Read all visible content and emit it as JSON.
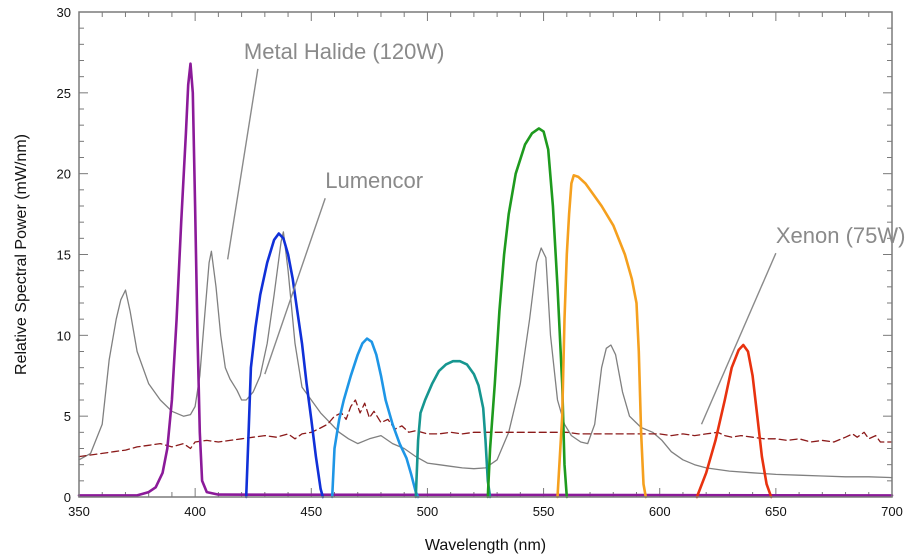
{
  "chart_data": {
    "type": "line",
    "xlabel": "Wavelength (nm)",
    "ylabel": "Relative Spectral Power (mW/nm)",
    "xlim": [
      350,
      700
    ],
    "ylim": [
      0,
      30
    ],
    "x_ticks": [
      "350",
      "400",
      "450",
      "500",
      "550",
      "600",
      "650",
      "700"
    ],
    "y_ticks": [
      "0",
      "5",
      "10",
      "15",
      "20",
      "25",
      "30"
    ],
    "grid": false,
    "annotations": [
      {
        "text": "Metal Halide (120W)",
        "from": [
          421,
          27.1
        ],
        "to": [
          414,
          14.7
        ]
      },
      {
        "text": "Lumencor",
        "from": [
          456,
          19.1
        ],
        "to": [
          430,
          7.6
        ]
      },
      {
        "text": "Xenon (75W)",
        "from": [
          650,
          15.7
        ],
        "to": [
          618,
          4.5
        ]
      }
    ],
    "series": [
      {
        "style": "thin-gray",
        "color": "#808080",
        "points": [
          [
            350,
            2.3
          ],
          [
            355,
            2.7
          ],
          [
            360,
            4.5
          ],
          [
            363,
            8.5
          ],
          [
            366,
            11.0
          ],
          [
            368,
            12.2
          ],
          [
            370,
            12.8
          ],
          [
            372,
            11.5
          ],
          [
            375,
            9.0
          ],
          [
            380,
            7.0
          ],
          [
            385,
            6.0
          ],
          [
            390,
            5.3
          ],
          [
            395,
            5.0
          ],
          [
            398,
            5.1
          ],
          [
            400,
            5.6
          ],
          [
            402,
            7.5
          ],
          [
            404,
            11.0
          ],
          [
            406,
            14.5
          ],
          [
            407,
            15.2
          ],
          [
            409,
            13.0
          ],
          [
            411,
            10.0
          ],
          [
            413,
            8.0
          ],
          [
            415,
            7.3
          ],
          [
            418,
            6.6
          ],
          [
            420,
            6.0
          ],
          [
            422,
            6.0
          ],
          [
            425,
            6.5
          ],
          [
            428,
            7.5
          ],
          [
            431,
            9.5
          ],
          [
            434,
            12.5
          ],
          [
            437,
            15.8
          ],
          [
            438,
            16.4
          ],
          [
            440,
            14.0
          ],
          [
            443,
            9.5
          ],
          [
            446,
            6.8
          ],
          [
            450,
            6.0
          ],
          [
            454,
            5.2
          ],
          [
            458,
            4.6
          ],
          [
            462,
            4.0
          ],
          [
            466,
            3.6
          ],
          [
            470,
            3.3
          ],
          [
            475,
            3.6
          ],
          [
            480,
            3.8
          ],
          [
            485,
            3.3
          ],
          [
            490,
            3.0
          ],
          [
            495,
            2.5
          ],
          [
            500,
            2.1
          ],
          [
            505,
            2.0
          ],
          [
            510,
            1.9
          ],
          [
            515,
            1.8
          ],
          [
            520,
            1.75
          ],
          [
            525,
            1.8
          ],
          [
            530,
            2.3
          ],
          [
            535,
            4.0
          ],
          [
            540,
            7.0
          ],
          [
            544,
            11.0
          ],
          [
            547,
            14.5
          ],
          [
            549,
            15.4
          ],
          [
            551,
            14.8
          ],
          [
            553,
            10.0
          ],
          [
            556,
            6.0
          ],
          [
            559,
            4.5
          ],
          [
            562,
            3.8
          ],
          [
            566,
            3.4
          ],
          [
            569,
            3.3
          ],
          [
            572,
            4.5
          ],
          [
            575,
            8.0
          ],
          [
            577,
            9.2
          ],
          [
            579,
            9.4
          ],
          [
            581,
            8.8
          ],
          [
            584,
            6.5
          ],
          [
            587,
            5.0
          ],
          [
            592,
            4.3
          ],
          [
            597,
            4.0
          ],
          [
            601,
            3.5
          ],
          [
            605,
            2.8
          ],
          [
            610,
            2.3
          ],
          [
            615,
            2.0
          ],
          [
            620,
            1.8
          ],
          [
            630,
            1.6
          ],
          [
            640,
            1.5
          ],
          [
            650,
            1.4
          ],
          [
            660,
            1.35
          ],
          [
            670,
            1.3
          ],
          [
            680,
            1.25
          ],
          [
            690,
            1.25
          ],
          [
            700,
            1.2
          ]
        ]
      },
      {
        "style": "dashed",
        "color": "#8b1a1a",
        "points": [
          [
            350,
            2.5
          ],
          [
            355,
            2.6
          ],
          [
            360,
            2.7
          ],
          [
            365,
            2.8
          ],
          [
            370,
            2.9
          ],
          [
            375,
            3.1
          ],
          [
            380,
            3.2
          ],
          [
            385,
            3.3
          ],
          [
            390,
            3.1
          ],
          [
            395,
            3.3
          ],
          [
            398,
            3.0
          ],
          [
            400,
            3.4
          ],
          [
            405,
            3.5
          ],
          [
            410,
            3.4
          ],
          [
            415,
            3.5
          ],
          [
            420,
            3.6
          ],
          [
            425,
            3.7
          ],
          [
            430,
            3.8
          ],
          [
            435,
            3.7
          ],
          [
            440,
            3.9
          ],
          [
            443,
            3.6
          ],
          [
            446,
            3.9
          ],
          [
            450,
            4.0
          ],
          [
            453,
            4.2
          ],
          [
            457,
            4.5
          ],
          [
            460,
            5.0
          ],
          [
            463,
            5.2
          ],
          [
            465,
            4.8
          ],
          [
            467,
            5.6
          ],
          [
            469,
            6.0
          ],
          [
            471,
            5.2
          ],
          [
            473,
            5.8
          ],
          [
            475,
            4.9
          ],
          [
            477,
            5.3
          ],
          [
            480,
            4.6
          ],
          [
            483,
            4.8
          ],
          [
            486,
            4.2
          ],
          [
            489,
            4.4
          ],
          [
            492,
            4.0
          ],
          [
            495,
            4.1
          ],
          [
            500,
            3.9
          ],
          [
            505,
            3.9
          ],
          [
            510,
            4.0
          ],
          [
            515,
            3.9
          ],
          [
            520,
            4.0
          ],
          [
            525,
            4.0
          ],
          [
            530,
            4.0
          ],
          [
            535,
            4.0
          ],
          [
            540,
            4.0
          ],
          [
            545,
            4.0
          ],
          [
            550,
            4.0
          ],
          [
            555,
            4.0
          ],
          [
            560,
            4.0
          ],
          [
            565,
            3.9
          ],
          [
            570,
            3.9
          ],
          [
            575,
            3.9
          ],
          [
            580,
            3.9
          ],
          [
            585,
            3.9
          ],
          [
            590,
            3.9
          ],
          [
            595,
            3.9
          ],
          [
            600,
            3.9
          ],
          [
            605,
            3.8
          ],
          [
            610,
            3.9
          ],
          [
            615,
            3.8
          ],
          [
            620,
            3.9
          ],
          [
            625,
            4.0
          ],
          [
            628,
            3.8
          ],
          [
            631,
            3.7
          ],
          [
            635,
            3.8
          ],
          [
            640,
            3.7
          ],
          [
            645,
            3.6
          ],
          [
            650,
            3.6
          ],
          [
            655,
            3.5
          ],
          [
            660,
            3.6
          ],
          [
            665,
            3.4
          ],
          [
            670,
            3.5
          ],
          [
            675,
            3.4
          ],
          [
            680,
            3.7
          ],
          [
            683,
            3.9
          ],
          [
            685,
            3.7
          ],
          [
            688,
            4.0
          ],
          [
            690,
            3.6
          ],
          [
            693,
            3.8
          ],
          [
            695,
            3.4
          ],
          [
            700,
            3.4
          ]
        ]
      },
      {
        "style": "thick",
        "color": "#8b1a99",
        "points": [
          [
            350,
            0.1
          ],
          [
            375,
            0.1
          ],
          [
            380,
            0.3
          ],
          [
            383,
            0.6
          ],
          [
            386,
            1.5
          ],
          [
            388,
            3.0
          ],
          [
            390,
            6.0
          ],
          [
            392,
            11.0
          ],
          [
            394,
            17.0
          ],
          [
            396,
            22.5
          ],
          [
            397,
            25.5
          ],
          [
            398,
            26.8
          ],
          [
            399,
            25.0
          ],
          [
            400,
            18.0
          ],
          [
            401,
            10.0
          ],
          [
            402,
            4.0
          ],
          [
            403,
            1.0
          ],
          [
            405,
            0.3
          ],
          [
            410,
            0.15
          ],
          [
            700,
            0.1
          ]
        ]
      },
      {
        "style": "thick",
        "color": "#1030d8",
        "points": [
          [
            422,
            0.0
          ],
          [
            423,
            4.0
          ],
          [
            424,
            8.0
          ],
          [
            426,
            10.5
          ],
          [
            428,
            12.5
          ],
          [
            431,
            14.5
          ],
          [
            434,
            15.9
          ],
          [
            436,
            16.3
          ],
          [
            438,
            16.0
          ],
          [
            440,
            15.0
          ],
          [
            442,
            13.5
          ],
          [
            444,
            11.5
          ],
          [
            446,
            9.5
          ],
          [
            448,
            7.0
          ],
          [
            450,
            4.8
          ],
          [
            452,
            2.5
          ],
          [
            454,
            0.5
          ],
          [
            455,
            0.0
          ]
        ]
      },
      {
        "style": "thick",
        "color": "#1e96e6",
        "points": [
          [
            459,
            0.0
          ],
          [
            460,
            3.0
          ],
          [
            462,
            4.8
          ],
          [
            464,
            6.0
          ],
          [
            467,
            7.5
          ],
          [
            470,
            8.8
          ],
          [
            472,
            9.5
          ],
          [
            474,
            9.8
          ],
          [
            476,
            9.6
          ],
          [
            478,
            8.8
          ],
          [
            480,
            7.5
          ],
          [
            482,
            6.0
          ],
          [
            485,
            4.5
          ],
          [
            488,
            3.3
          ],
          [
            491,
            2.4
          ],
          [
            493,
            1.4
          ],
          [
            495,
            0.3
          ],
          [
            496,
            0.0
          ]
        ]
      },
      {
        "style": "thick",
        "color": "#169690",
        "points": [
          [
            495,
            0.0
          ],
          [
            496,
            3.5
          ],
          [
            497,
            5.2
          ],
          [
            499,
            6.0
          ],
          [
            502,
            7.0
          ],
          [
            505,
            7.8
          ],
          [
            508,
            8.2
          ],
          [
            511,
            8.4
          ],
          [
            514,
            8.4
          ],
          [
            517,
            8.2
          ],
          [
            520,
            7.6
          ],
          [
            522,
            6.9
          ],
          [
            524,
            5.5
          ],
          [
            525,
            3.5
          ],
          [
            526,
            1.0
          ],
          [
            527,
            0.0
          ]
        ]
      },
      {
        "style": "thick",
        "color": "#1e9a1e",
        "points": [
          [
            526,
            0.0
          ],
          [
            527,
            3.0
          ],
          [
            529,
            7.0
          ],
          [
            531,
            11.5
          ],
          [
            533,
            15.0
          ],
          [
            535,
            17.5
          ],
          [
            538,
            20.0
          ],
          [
            542,
            21.8
          ],
          [
            545,
            22.5
          ],
          [
            548,
            22.8
          ],
          [
            550,
            22.6
          ],
          [
            552,
            21.5
          ],
          [
            554,
            18.0
          ],
          [
            556,
            13.0
          ],
          [
            558,
            7.0
          ],
          [
            559,
            2.0
          ],
          [
            560,
            0.0
          ]
        ]
      },
      {
        "style": "thick",
        "color": "#f5a01e",
        "points": [
          [
            556,
            0.0
          ],
          [
            558,
            5.0
          ],
          [
            559,
            11.0
          ],
          [
            560,
            15.0
          ],
          [
            561,
            17.5
          ],
          [
            562,
            19.4
          ],
          [
            563,
            19.9
          ],
          [
            565,
            19.8
          ],
          [
            568,
            19.4
          ],
          [
            571,
            18.8
          ],
          [
            575,
            18.0
          ],
          [
            580,
            16.8
          ],
          [
            585,
            15.0
          ],
          [
            588,
            13.5
          ],
          [
            590,
            12.0
          ],
          [
            591,
            9.0
          ],
          [
            592,
            4.0
          ],
          [
            593,
            0.8
          ],
          [
            594,
            0.0
          ]
        ]
      },
      {
        "style": "thick",
        "color": "#e8320f",
        "points": [
          [
            616,
            0.0
          ],
          [
            620,
            1.5
          ],
          [
            624,
            3.5
          ],
          [
            628,
            6.0
          ],
          [
            631,
            8.0
          ],
          [
            634,
            9.1
          ],
          [
            636,
            9.4
          ],
          [
            638,
            9.0
          ],
          [
            640,
            7.5
          ],
          [
            642,
            5.0
          ],
          [
            644,
            2.5
          ],
          [
            646,
            0.8
          ],
          [
            648,
            0.0
          ]
        ]
      }
    ]
  }
}
